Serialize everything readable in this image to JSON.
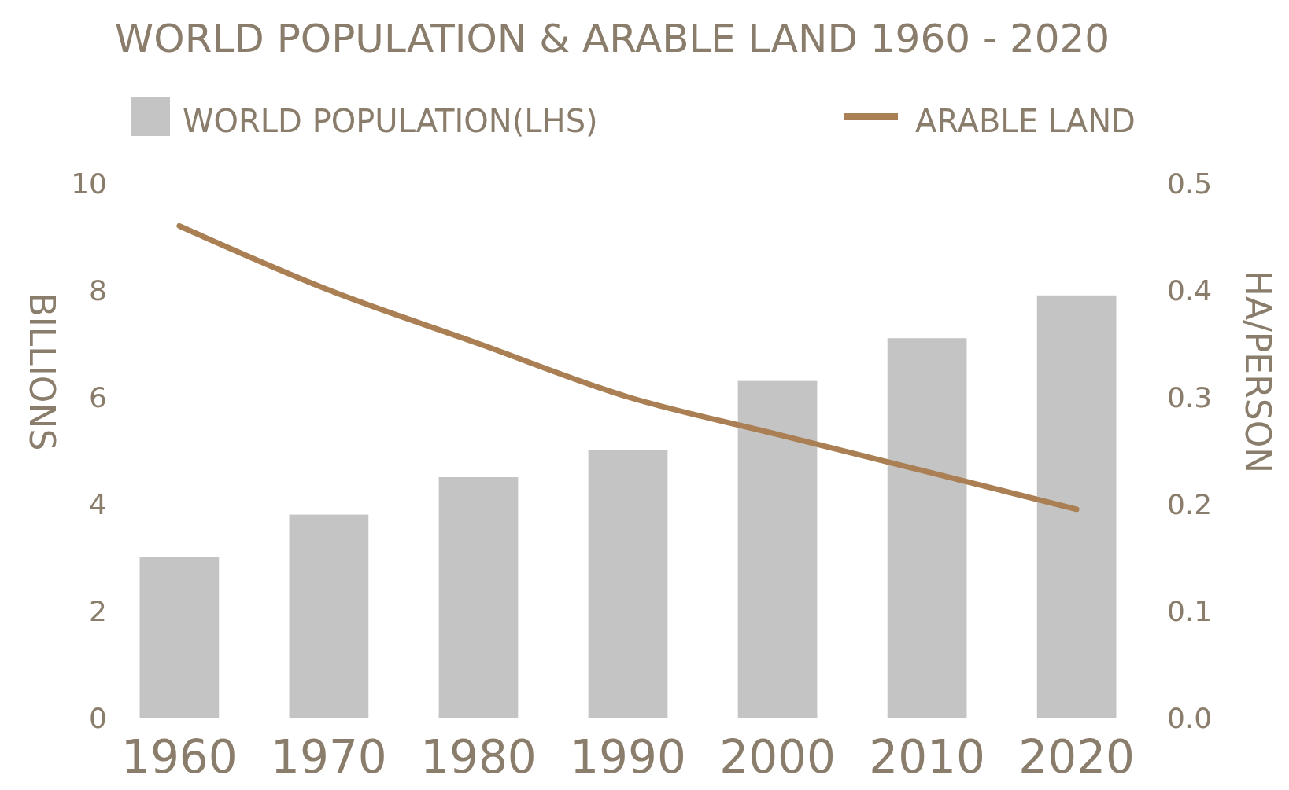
{
  "chart_data": {
    "type": "bar",
    "title": "WORLD POPULATION & ARABLE LAND 1960 - 2020",
    "ylabel": "BILLIONS",
    "y2label": "HA/PERSON",
    "categories": [
      "1960",
      "1970",
      "1980",
      "1990",
      "2000",
      "2010",
      "2020"
    ],
    "series": [
      {
        "name": "WORLD POPULATION(LHS)",
        "color": "#c4c4c4",
        "values": [
          3.0,
          3.8,
          4.5,
          5.0,
          6.3,
          7.1,
          7.9
        ]
      },
      {
        "name": "ARABLE LAND",
        "type": "line",
        "axis": "y2",
        "color": "#a97f53",
        "values": [
          0.46,
          0.4,
          0.35,
          0.3,
          0.265,
          0.23,
          0.195
        ]
      }
    ],
    "ylim": [
      0,
      10
    ],
    "yticks": [
      0,
      2,
      4,
      6,
      8,
      10
    ],
    "y2lim": [
      0,
      0.5
    ],
    "y2ticks": [
      {
        "value": 0,
        "label": "0.0"
      },
      0.1,
      0.2,
      0.3,
      0.4,
      0.5
    ],
    "grid": false,
    "legend": "top"
  }
}
